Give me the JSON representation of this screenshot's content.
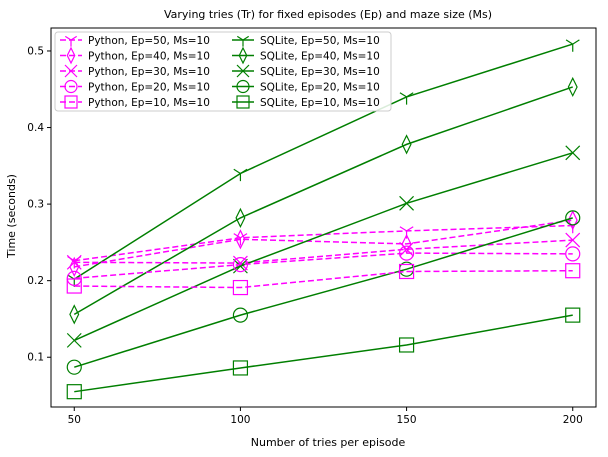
{
  "chart_data": {
    "type": "line",
    "title": "Varying tries (Tr) for fixed episodes (Ep) and maze size (Ms)",
    "xlabel": "Number of tries per episode",
    "ylabel": "Time (seconds)",
    "x": [
      50,
      100,
      150,
      200
    ],
    "x_ticks": [
      "50",
      "100",
      "150",
      "200"
    ],
    "y_ticks": [
      "0.1",
      "0.2",
      "0.3",
      "0.4",
      "0.5"
    ],
    "xlim": [
      43,
      207
    ],
    "ylim": [
      0.035,
      0.53
    ],
    "legend_placement": "top-left",
    "colors": {
      "python": "#ff00ff",
      "sqlite": "#007f00"
    },
    "series": [
      {
        "name": "Python, Ep=50, Ms=10",
        "impl": "python",
        "marker": "tri_down",
        "values": [
          0.226,
          0.256,
          0.265,
          0.272
        ]
      },
      {
        "name": "SQLite, Ep=50, Ms=10",
        "impl": "sqlite",
        "marker": "tri_down",
        "values": [
          0.202,
          0.34,
          0.44,
          0.509
        ]
      },
      {
        "name": "Python, Ep=40, Ms=10",
        "impl": "python",
        "marker": "thin_diamond",
        "values": [
          0.218,
          0.254,
          0.248,
          0.279
        ]
      },
      {
        "name": "SQLite, Ep=40, Ms=10",
        "impl": "sqlite",
        "marker": "thin_diamond",
        "values": [
          0.156,
          0.282,
          0.378,
          0.453
        ]
      },
      {
        "name": "Python, Ep=30, Ms=10",
        "impl": "python",
        "marker": "x",
        "values": [
          0.224,
          0.223,
          0.241,
          0.253
        ]
      },
      {
        "name": "SQLite, Ep=30, Ms=10",
        "impl": "sqlite",
        "marker": "x",
        "values": [
          0.122,
          0.219,
          0.301,
          0.367
        ]
      },
      {
        "name": "Python, Ep=20, Ms=10",
        "impl": "python",
        "marker": "circle",
        "values": [
          0.203,
          0.221,
          0.236,
          0.235
        ]
      },
      {
        "name": "SQLite, Ep=20, Ms=10",
        "impl": "sqlite",
        "marker": "circle",
        "values": [
          0.087,
          0.155,
          0.215,
          0.282
        ]
      },
      {
        "name": "Python, Ep=10, Ms=10",
        "impl": "python",
        "marker": "square",
        "values": [
          0.193,
          0.191,
          0.212,
          0.213
        ]
      },
      {
        "name": "SQLite, Ep=10, Ms=10",
        "impl": "sqlite",
        "marker": "square",
        "values": [
          0.055,
          0.086,
          0.116,
          0.155
        ]
      }
    ]
  }
}
